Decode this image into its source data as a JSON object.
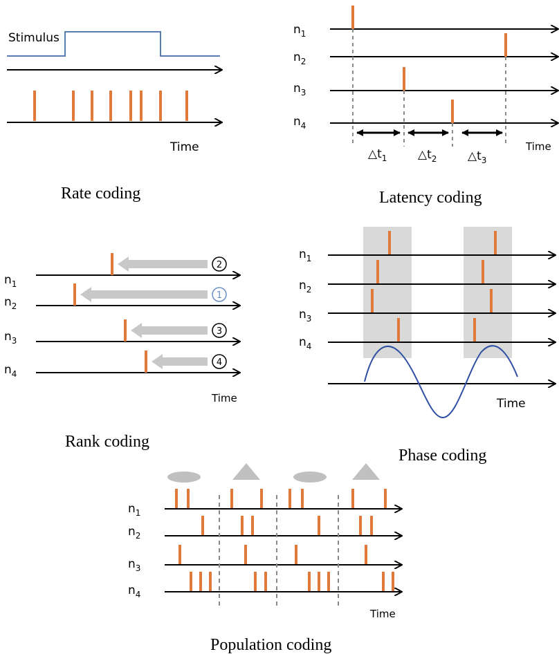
{
  "panels": {
    "rate": {
      "caption": "Rate coding",
      "stimulus_label": "Stimulus",
      "time_label": "Time",
      "spike_times": [
        50,
        106,
        133,
        160,
        189,
        204,
        232,
        270
      ]
    },
    "latency": {
      "caption": "Latency coding",
      "time_label": "Time",
      "neurons": [
        {
          "base": "n",
          "sub": "1",
          "spike": 510
        },
        {
          "base": "n",
          "sub": "2",
          "spike": 731
        },
        {
          "base": "n",
          "sub": "3",
          "spike": 584
        },
        {
          "base": "n",
          "sub": "4",
          "spike": 654
        }
      ],
      "intervals": [
        {
          "base": "△t",
          "sub": "1"
        },
        {
          "base": "△t",
          "sub": "2"
        },
        {
          "base": "△t",
          "sub": "3"
        }
      ]
    },
    "rank": {
      "caption": "Rank coding",
      "time_label": "Time",
      "neurons": [
        {
          "base": "n",
          "sub": "1",
          "spike": 162,
          "rank": "2",
          "rank_color": "#000000"
        },
        {
          "base": "n",
          "sub": "2",
          "spike": 108,
          "rank": "1",
          "rank_color": "#6a8fc6"
        },
        {
          "base": "n",
          "sub": "3",
          "spike": 181,
          "rank": "3",
          "rank_color": "#000000"
        },
        {
          "base": "n",
          "sub": "4",
          "spike": 211,
          "rank": "4",
          "rank_color": "#000000"
        }
      ]
    },
    "phase": {
      "caption": "Phase coding",
      "time_label": "Time",
      "neurons": [
        {
          "base": "n",
          "sub": "1",
          "spikes": [
            563,
            716
          ]
        },
        {
          "base": "n",
          "sub": "2",
          "spikes": [
            546,
            698
          ]
        },
        {
          "base": "n",
          "sub": "3",
          "spikes": [
            538,
            710
          ]
        },
        {
          "base": "n",
          "sub": "4",
          "spikes": [
            576,
            686
          ]
        }
      ]
    },
    "population": {
      "caption": "Population coding",
      "time_label": "Time",
      "stimuli": [
        "ellipse",
        "triangle",
        "ellipse",
        "triangle"
      ],
      "neurons": [
        {
          "base": "n",
          "sub": "1",
          "spikes": [
            255,
            272,
            335,
            378,
            419,
            437,
            510,
            557
          ]
        },
        {
          "base": "n",
          "sub": "2",
          "spikes": [
            293,
            350,
            365,
            461,
            521,
            537
          ]
        },
        {
          "base": "n",
          "sub": "3",
          "spikes": [
            260,
            355,
            428,
            529
          ]
        },
        {
          "base": "n",
          "sub": "4",
          "spikes": [
            276,
            290,
            304,
            369,
            384,
            447,
            461,
            475,
            554,
            568
          ]
        }
      ]
    }
  },
  "colors": {
    "spike": "#e07a3a",
    "stimulus_line": "#5b7bb5",
    "arrow": "#000000",
    "grey_arrow": "#c8c8c8",
    "dashed": "#8a8a8a",
    "shade": "#d9d9d9",
    "wave": "#2f4fa3"
  }
}
